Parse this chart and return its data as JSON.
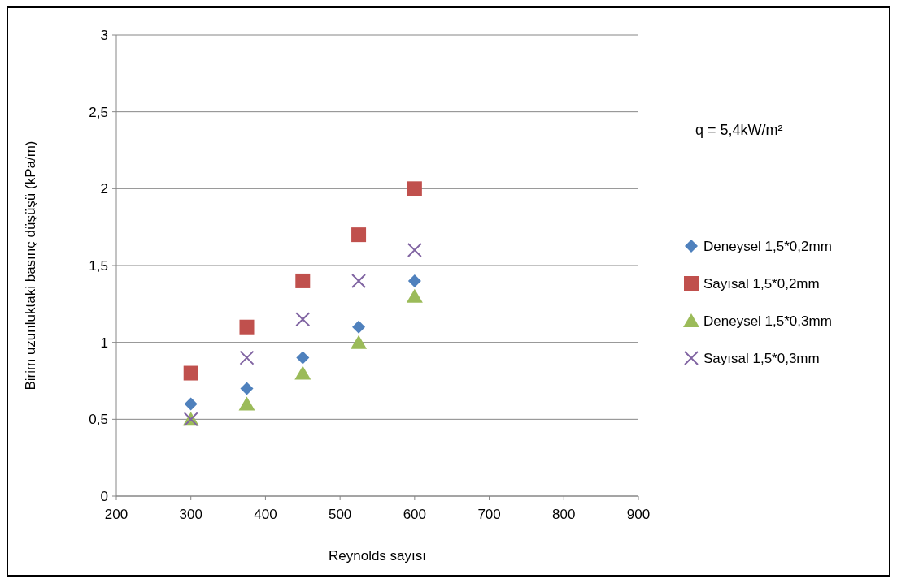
{
  "chart_data": {
    "type": "scatter",
    "xlabel": "Reynolds sayısı",
    "ylabel": "Birim uzunluktaki basınç düşüşü (kPa/m)",
    "x": [
      300,
      375,
      450,
      525,
      600
    ],
    "series": [
      {
        "name": "Deneysel 1,5*0,2mm",
        "color": "#4f81bd",
        "marker": "diamond",
        "values": [
          0.6,
          0.7,
          0.9,
          1.1,
          1.4
        ]
      },
      {
        "name": "Sayısal 1,5*0,2mm",
        "color": "#c0504d",
        "marker": "square",
        "values": [
          0.8,
          1.1,
          1.4,
          1.7,
          2.0
        ]
      },
      {
        "name": "Deneysel 1,5*0,3mm",
        "color": "#9bbb59",
        "marker": "triangle",
        "values": [
          0.5,
          0.6,
          0.8,
          1.0,
          1.3
        ]
      },
      {
        "name": "Sayısal 1,5*0,3mm",
        "color": "#8064a2",
        "marker": "cross",
        "values": [
          0.5,
          0.9,
          1.15,
          1.4,
          1.6
        ]
      }
    ],
    "xlim": [
      200,
      900
    ],
    "xticks": [
      200,
      300,
      400,
      500,
      600,
      700,
      800,
      900
    ],
    "ylim": [
      0,
      3
    ],
    "yticks": [
      0,
      {
        "value": 0.5,
        "label": "0,5"
      },
      1,
      {
        "value": 1.5,
        "label": "1,5"
      },
      2,
      {
        "value": 2.5,
        "label": "2,5"
      },
      3
    ],
    "grid": "y",
    "legend": "right",
    "annotations": [
      "q = 5,4kW/m²"
    ]
  }
}
